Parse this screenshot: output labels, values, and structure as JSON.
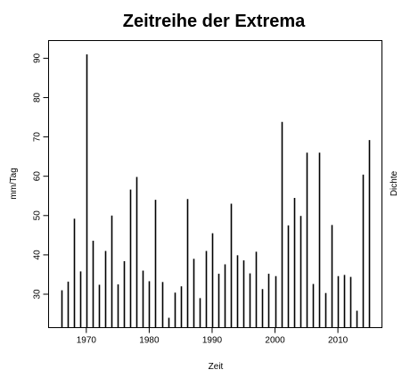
{
  "chart_data": {
    "type": "bar",
    "style": "vertical-lines",
    "title": "Zeitreihe der Extrema",
    "xlabel": "Zeit",
    "ylabel": "mm/Tag",
    "right_label": "Dichte",
    "xlim": [
      1964,
      2017
    ],
    "ylim": [
      21.5,
      94.5
    ],
    "baseline": 21.5,
    "x_ticks": [
      1970,
      1980,
      1990,
      2000,
      2010
    ],
    "y_ticks": [
      30,
      40,
      50,
      60,
      70,
      80,
      90
    ],
    "x": [
      1966,
      1967,
      1968,
      1969,
      1970,
      1971,
      1972,
      1973,
      1974,
      1975,
      1976,
      1977,
      1978,
      1979,
      1980,
      1981,
      1982,
      1983,
      1984,
      1985,
      1986,
      1987,
      1988,
      1989,
      1990,
      1991,
      1992,
      1993,
      1994,
      1995,
      1996,
      1997,
      1998,
      1999,
      2000,
      2001,
      2002,
      2003,
      2004,
      2005,
      2006,
      2007,
      2008,
      2009,
      2010,
      2011,
      2012,
      2013,
      2014,
      2015
    ],
    "values": [
      31.0,
      33.2,
      49.2,
      35.8,
      91.0,
      43.6,
      32.4,
      41.0,
      50.0,
      32.5,
      38.4,
      56.6,
      59.8,
      36.0,
      33.3,
      54.0,
      33.1,
      24.0,
      30.4,
      32.0,
      54.2,
      39.0,
      29.0,
      41.0,
      45.5,
      35.2,
      37.6,
      53.0,
      39.9,
      38.6,
      35.3,
      40.8,
      31.3,
      35.2,
      34.6,
      73.8,
      47.5,
      54.5,
      49.9,
      66.0,
      32.6,
      66.0,
      30.3,
      47.6,
      34.6,
      34.9,
      34.4,
      25.8,
      60.4,
      69.2
    ],
    "grid": false,
    "legend": "none"
  }
}
